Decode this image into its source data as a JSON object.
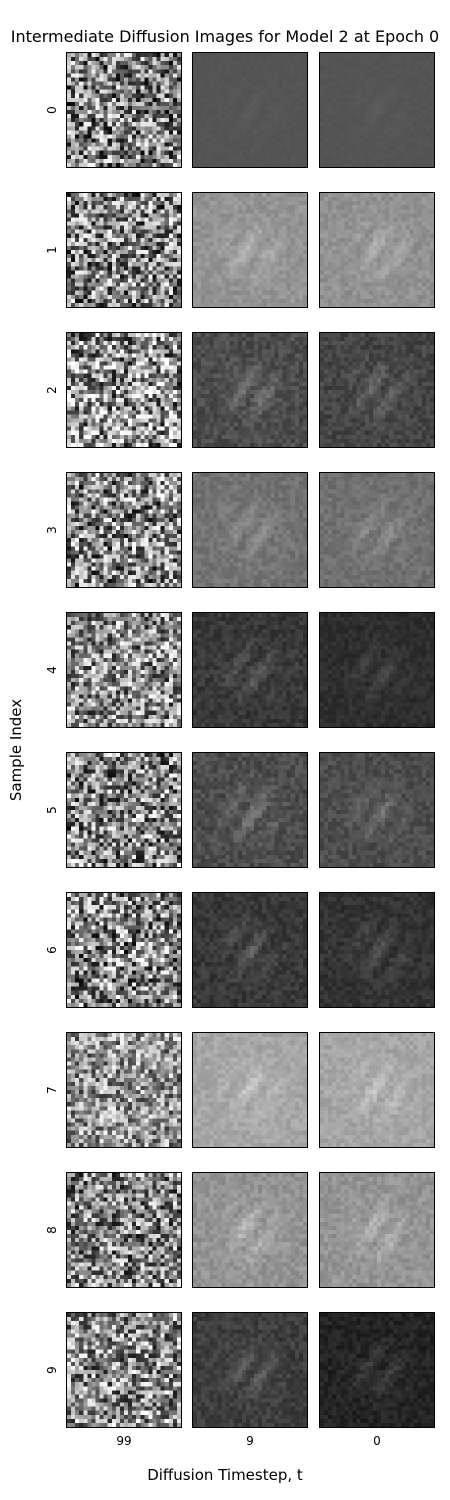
{
  "chart_data": {
    "type": "heatmap",
    "title": "Intermediate Diffusion Images for Model 2 at Epoch 0",
    "xlabel": "Diffusion Timestep, t",
    "ylabel": "Sample Index",
    "x_ticks": [
      "99",
      "9",
      "0"
    ],
    "y_ticks": [
      "0",
      "1",
      "2",
      "3",
      "4",
      "5",
      "6",
      "7",
      "8",
      "9"
    ],
    "colormap": "gray",
    "grid": false,
    "panels": [
      {
        "sample": "0",
        "timesteps": [
          {
            "t": "99",
            "mean_gray": 0.5,
            "contrast": 0.3
          },
          {
            "t": "9",
            "mean_gray": 0.33,
            "contrast": 0.02
          },
          {
            "t": "0",
            "mean_gray": 0.33,
            "contrast": 0.02
          }
        ]
      },
      {
        "sample": "1",
        "timesteps": [
          {
            "t": "99",
            "mean_gray": 0.52,
            "contrast": 0.3
          },
          {
            "t": "9",
            "mean_gray": 0.58,
            "contrast": 0.1
          },
          {
            "t": "0",
            "mean_gray": 0.57,
            "contrast": 0.1
          }
        ]
      },
      {
        "sample": "2",
        "timesteps": [
          {
            "t": "99",
            "mean_gray": 0.58,
            "contrast": 0.32
          },
          {
            "t": "9",
            "mean_gray": 0.3,
            "contrast": 0.14
          },
          {
            "t": "0",
            "mean_gray": 0.27,
            "contrast": 0.13
          }
        ]
      },
      {
        "sample": "3",
        "timesteps": [
          {
            "t": "99",
            "mean_gray": 0.52,
            "contrast": 0.3
          },
          {
            "t": "9",
            "mean_gray": 0.45,
            "contrast": 0.11
          },
          {
            "t": "0",
            "mean_gray": 0.44,
            "contrast": 0.1
          }
        ]
      },
      {
        "sample": "4",
        "timesteps": [
          {
            "t": "99",
            "mean_gray": 0.55,
            "contrast": 0.28
          },
          {
            "t": "9",
            "mean_gray": 0.22,
            "contrast": 0.12
          },
          {
            "t": "0",
            "mean_gray": 0.18,
            "contrast": 0.08
          }
        ]
      },
      {
        "sample": "5",
        "timesteps": [
          {
            "t": "99",
            "mean_gray": 0.52,
            "contrast": 0.3
          },
          {
            "t": "9",
            "mean_gray": 0.3,
            "contrast": 0.14
          },
          {
            "t": "0",
            "mean_gray": 0.3,
            "contrast": 0.12
          }
        ]
      },
      {
        "sample": "6",
        "timesteps": [
          {
            "t": "99",
            "mean_gray": 0.52,
            "contrast": 0.3
          },
          {
            "t": "9",
            "mean_gray": 0.22,
            "contrast": 0.12
          },
          {
            "t": "0",
            "mean_gray": 0.2,
            "contrast": 0.1
          }
        ]
      },
      {
        "sample": "7",
        "timesteps": [
          {
            "t": "99",
            "mean_gray": 0.58,
            "contrast": 0.24
          },
          {
            "t": "9",
            "mean_gray": 0.65,
            "contrast": 0.1
          },
          {
            "t": "0",
            "mean_gray": 0.65,
            "contrast": 0.1
          }
        ]
      },
      {
        "sample": "8",
        "timesteps": [
          {
            "t": "99",
            "mean_gray": 0.52,
            "contrast": 0.28
          },
          {
            "t": "9",
            "mean_gray": 0.58,
            "contrast": 0.12
          },
          {
            "t": "0",
            "mean_gray": 0.58,
            "contrast": 0.12
          }
        ]
      },
      {
        "sample": "9",
        "timesteps": [
          {
            "t": "99",
            "mean_gray": 0.55,
            "contrast": 0.28
          },
          {
            "t": "9",
            "mean_gray": 0.24,
            "contrast": 0.12
          },
          {
            "t": "0",
            "mean_gray": 0.14,
            "contrast": 0.1
          }
        ]
      }
    ]
  }
}
